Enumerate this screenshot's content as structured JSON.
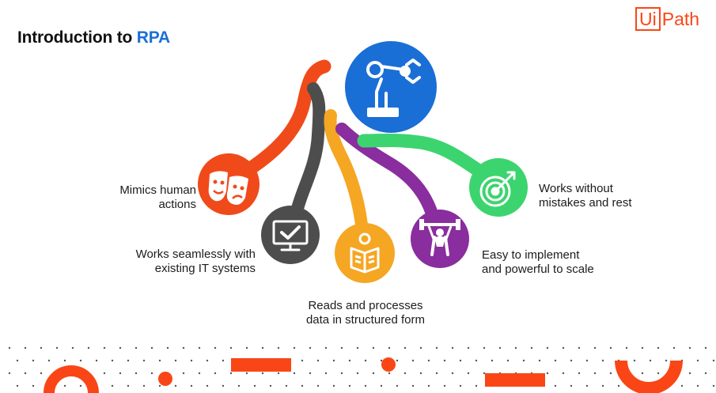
{
  "header": {
    "title_prefix": "Introduction to ",
    "title_accent": "RPA"
  },
  "logo": {
    "box_text": "Ui",
    "rest_text": "Path"
  },
  "colors": {
    "brand": "#fa4616",
    "accent_blue": "#1a6fd6",
    "hub": "#1a6fd6",
    "orange": "#f04a1a",
    "dark_gray": "#4d4d4d",
    "yellow": "#f5a623",
    "purple": "#8a2d9e",
    "green": "#3cd46e"
  },
  "features": [
    {
      "line1": "Mimics human",
      "line2": "actions",
      "icon": "theater-masks-icon"
    },
    {
      "line1": "Works seamlessly with",
      "line2": "existing IT systems",
      "icon": "monitor-check-icon"
    },
    {
      "line1": "Reads and processes",
      "line2": "data in structured form",
      "icon": "reading-person-icon"
    },
    {
      "line1": "Easy to implement",
      "line2": "and powerful to scale",
      "icon": "weightlifter-icon"
    },
    {
      "line1": "Works without",
      "line2": "mistakes and rest",
      "icon": "target-arrow-icon"
    }
  ],
  "hub": {
    "icon": "robot-arm-icon"
  }
}
